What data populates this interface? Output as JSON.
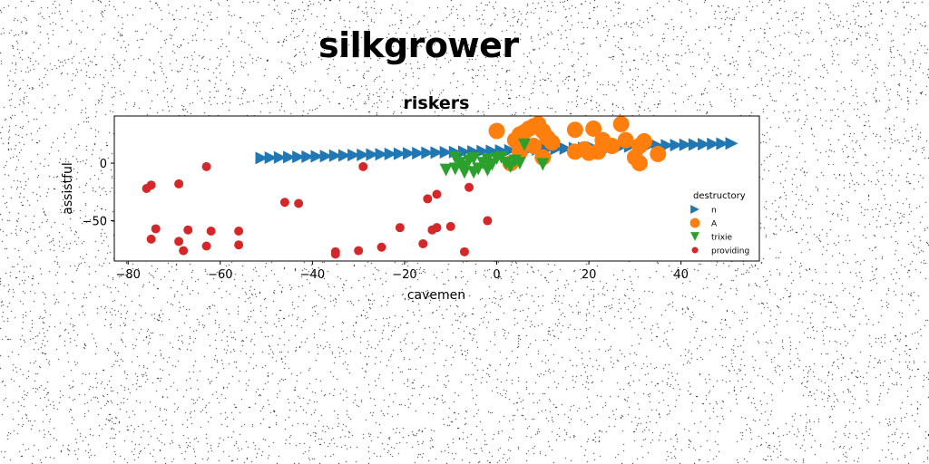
{
  "figure": {
    "suptitle": "silkgrower"
  },
  "chart_data": {
    "type": "scatter",
    "title": "riskers",
    "xlabel": "cavemen",
    "ylabel": "assistful",
    "xlim": [
      -83,
      57
    ],
    "ylim": [
      -85,
      41
    ],
    "xticks": [
      -80,
      -60,
      -40,
      -20,
      0,
      20,
      40
    ],
    "yticks": [
      -50,
      0
    ],
    "grid": false,
    "legend": {
      "title": "destructory",
      "placement": "lower-right"
    },
    "series": [
      {
        "name": "n",
        "marker": "triangle-right",
        "color": "#1f77b4",
        "x": [
          -51,
          -49,
          -47,
          -45,
          -43,
          -41,
          -39,
          -37,
          -35,
          -33,
          -31,
          -29,
          -27,
          -25,
          -23,
          -21,
          -19,
          -17,
          -15,
          -13,
          -11,
          -9,
          -7,
          -5,
          -3,
          -1,
          1,
          3,
          5,
          7,
          9,
          11,
          13,
          15,
          17,
          19,
          21,
          23,
          25,
          27,
          29,
          31,
          33,
          35,
          37,
          39,
          41,
          43,
          45,
          47,
          49,
          51
        ],
        "y": [
          4.5,
          4.8,
          5,
          5.3,
          5.5,
          5.7,
          6,
          6.2,
          6.5,
          6.7,
          7,
          7.2,
          7.5,
          7.7,
          8,
          8.2,
          8.5,
          8.7,
          9,
          9.2,
          9.5,
          9.7,
          10,
          10.2,
          10.5,
          10.7,
          11,
          11.2,
          11.5,
          11.7,
          12,
          12.2,
          12.5,
          12.7,
          13,
          13.2,
          13.5,
          13.7,
          14,
          14.2,
          14.5,
          14.7,
          15,
          15.2,
          15.5,
          15.7,
          16,
          16.2,
          16.5,
          16.7,
          17,
          17.2
        ]
      },
      {
        "name": "A",
        "marker": "circle-large",
        "color": "#ff7f0e",
        "x": [
          0,
          4,
          5,
          6,
          7,
          8,
          9,
          10,
          11,
          12,
          8,
          10,
          5,
          3,
          17,
          21,
          27,
          23,
          25,
          17,
          19,
          28,
          31,
          31,
          30,
          32,
          35,
          20,
          22
        ],
        "y": [
          28,
          20,
          25,
          27,
          30,
          32,
          34,
          28,
          22,
          18,
          15,
          5,
          10,
          0,
          29,
          30,
          34,
          20,
          15,
          10,
          12,
          20,
          15,
          0,
          5,
          19,
          8,
          9,
          10
        ]
      },
      {
        "name": "trixie",
        "marker": "triangle-down",
        "color": "#2ca02c",
        "x": [
          -9,
          -8,
          -7,
          -6,
          -5,
          -4,
          -3,
          -2,
          -1,
          0,
          1,
          2,
          3,
          4,
          5,
          6,
          10,
          -11,
          -5,
          -2,
          -7,
          -9
        ],
        "y": [
          5,
          0,
          -3,
          2,
          4,
          -5,
          0,
          3,
          -1,
          4,
          5,
          0,
          -3,
          2,
          0,
          16,
          -1,
          -6,
          -8,
          -6,
          -8,
          -5
        ]
      },
      {
        "name": "providing",
        "marker": "circle-small",
        "color": "#d62728",
        "x": [
          -76,
          -75,
          -69,
          -63,
          -29,
          -46,
          -43,
          -15,
          -13,
          -6,
          -21,
          -14,
          -13,
          -10,
          -2,
          -74,
          -67,
          -62,
          -56,
          -75,
          -69,
          -63,
          -56,
          -68,
          -35,
          -30,
          -25,
          -16,
          -7,
          -35
        ],
        "y": [
          -22,
          -19,
          -18,
          -3,
          -3,
          -34,
          -35,
          -31,
          -27,
          -21,
          -56,
          -58,
          -56,
          -55,
          -50,
          -57,
          -58,
          -59,
          -59,
          -66,
          -68,
          -72,
          -71,
          -76,
          -77,
          -76,
          -73,
          -70,
          -77,
          -79
        ]
      }
    ]
  }
}
